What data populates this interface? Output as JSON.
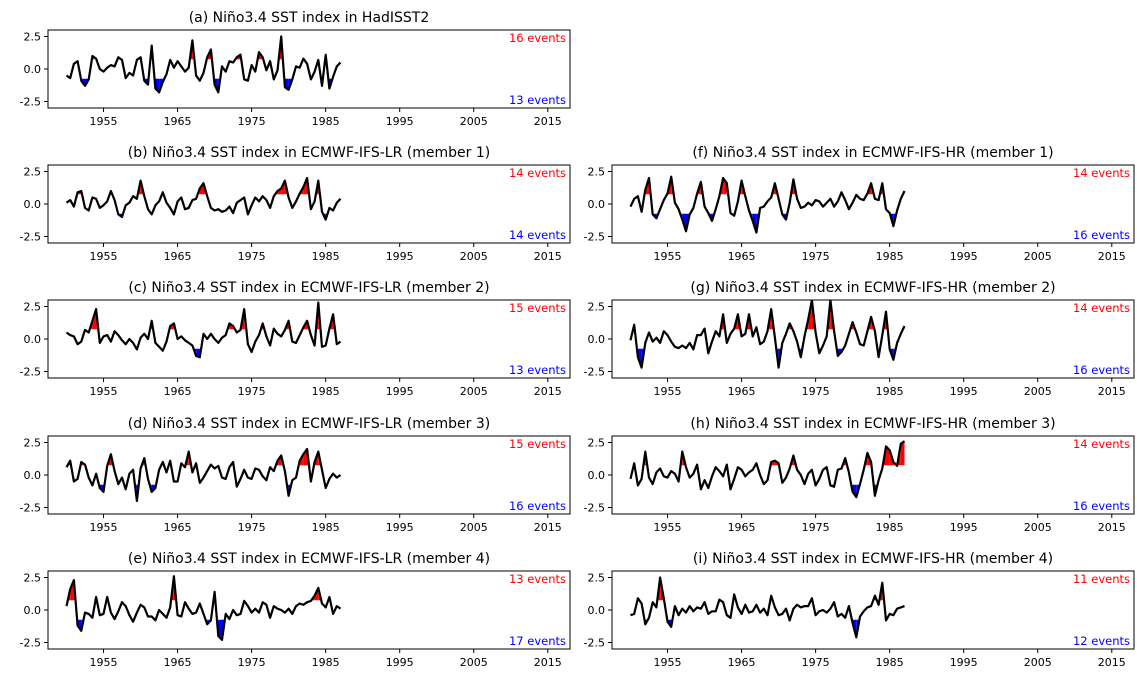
{
  "figure": {
    "colors": {
      "line": "#000000",
      "warm": "#ff0000",
      "cold": "#0000ff",
      "warm_text": "#ff0000",
      "cold_text": "#0000ff"
    }
  },
  "chart_data": [
    {
      "id": "a",
      "type": "line",
      "title": "(a) Niño3.4 SST index in HadISST2",
      "x_ticks": [
        1955,
        1965,
        1975,
        1985,
        1995,
        2005,
        2015
      ],
      "y_ticks": [
        2.5,
        0.0,
        -2.5
      ],
      "xlim": [
        1947.5,
        2018
      ],
      "ylim": [
        -3.0,
        3.0
      ],
      "threshold": 0.75,
      "warm_label": "16 events",
      "cold_label": "13 events",
      "series": {
        "x_start": 1950,
        "step": 0.5,
        "values": [
          -0.5,
          -0.7,
          0.4,
          0.6,
          -0.9,
          -1.3,
          -0.8,
          1.0,
          0.8,
          0.0,
          -0.2,
          0.1,
          0.3,
          0.2,
          0.9,
          0.7,
          -0.7,
          -0.3,
          -0.5,
          0.7,
          0.9,
          -0.9,
          -1.2,
          1.8,
          -1.5,
          -1.8,
          -1.0,
          -0.4,
          0.7,
          0.1,
          0.6,
          0.2,
          -0.2,
          0.1,
          2.2,
          -0.5,
          -0.9,
          -0.3,
          0.9,
          1.5,
          -1.2,
          -1.8,
          0.2,
          -0.2,
          0.6,
          0.5,
          0.9,
          1.1,
          -0.8,
          -0.9,
          0.3,
          -0.2,
          1.3,
          0.9,
          -0.1,
          0.6,
          -0.8,
          -0.1,
          2.5,
          -1.4,
          -1.6,
          -0.8,
          0.2,
          0.1,
          0.8,
          0.4,
          -0.8,
          -0.2,
          0.7,
          -1.3,
          1.1,
          -1.5,
          -0.6,
          0.2,
          0.5
        ]
      }
    },
    {
      "id": "b",
      "type": "line",
      "title": "(b) Niño3.4 SST index in ECMWF-IFS-LR (member 1)",
      "x_ticks": [
        1955,
        1965,
        1975,
        1985,
        1995,
        2005,
        2015
      ],
      "y_ticks": [
        2.5,
        0.0,
        -2.5
      ],
      "xlim": [
        1947.5,
        2018
      ],
      "ylim": [
        -3.0,
        3.0
      ],
      "threshold": 0.75,
      "warm_label": "14 events",
      "cold_label": "14 events",
      "series": {
        "x_start": 1950,
        "step": 0.5,
        "values": [
          0.1,
          0.3,
          -0.2,
          0.9,
          1.0,
          -0.3,
          -0.5,
          0.5,
          0.4,
          -0.3,
          -0.1,
          0.2,
          1.0,
          0.3,
          -0.8,
          -1.0,
          -0.1,
          0.1,
          0.6,
          0.4,
          1.8,
          0.6,
          -0.4,
          -0.8,
          -0.1,
          0.2,
          0.9,
          0.1,
          -0.3,
          -0.8,
          0.2,
          0.5,
          -0.4,
          -0.3,
          0.3,
          0.4,
          1.2,
          1.6,
          0.6,
          -0.3,
          -0.5,
          -0.4,
          -0.6,
          -0.5,
          -0.2,
          -0.7,
          0.1,
          0.3,
          0.5,
          -0.8,
          -0.1,
          0.5,
          0.2,
          0.6,
          0.3,
          -0.3,
          0.6,
          1.0,
          1.2,
          1.8,
          0.5,
          -0.3,
          0.2,
          0.8,
          1.3,
          2.0,
          -0.4,
          0.2,
          1.8,
          -0.6,
          -1.2,
          -0.3,
          -0.5,
          0.1,
          0.4
        ]
      }
    },
    {
      "id": "c",
      "type": "line",
      "title": "(c) Niño3.4 SST index in ECMWF-IFS-LR (member 2)",
      "x_ticks": [
        1955,
        1965,
        1975,
        1985,
        1995,
        2005,
        2015
      ],
      "y_ticks": [
        2.5,
        0.0,
        -2.5
      ],
      "xlim": [
        1947.5,
        2018
      ],
      "ylim": [
        -3.0,
        3.0
      ],
      "threshold": 0.75,
      "warm_label": "15 events",
      "cold_label": "13 events",
      "series": {
        "x_start": 1950,
        "step": 0.5,
        "values": [
          0.5,
          0.3,
          0.2,
          -0.4,
          -0.2,
          0.7,
          0.5,
          1.4,
          2.3,
          -0.3,
          0.2,
          0.3,
          -0.2,
          0.6,
          0.3,
          -0.1,
          -0.4,
          0.0,
          -0.3,
          -0.8,
          0.1,
          0.4,
          0.0,
          1.4,
          -0.3,
          -0.6,
          -0.9,
          -0.2,
          1.0,
          1.2,
          0.0,
          0.2,
          -0.1,
          -0.3,
          -0.5,
          -1.3,
          -1.4,
          0.4,
          0.0,
          0.4,
          0.0,
          -0.3,
          0.1,
          0.3,
          1.2,
          1.0,
          0.5,
          0.7,
          2.3,
          -0.4,
          -1.0,
          -0.2,
          0.3,
          1.2,
          0.2,
          -0.5,
          0.8,
          0.4,
          0.2,
          0.7,
          1.4,
          -0.2,
          -0.3,
          0.3,
          0.9,
          1.4,
          0.3,
          -0.5,
          2.8,
          -0.6,
          -0.5,
          0.8,
          1.9,
          -0.4,
          -0.2
        ]
      }
    },
    {
      "id": "d",
      "type": "line",
      "title": "(d) Niño3.4 SST index in ECMWF-IFS-LR (member 3)",
      "x_ticks": [
        1955,
        1965,
        1975,
        1985,
        1995,
        2005,
        2015
      ],
      "y_ticks": [
        2.5,
        0.0,
        -2.5
      ],
      "xlim": [
        1947.5,
        2018
      ],
      "ylim": [
        -3.0,
        3.0
      ],
      "threshold": 0.75,
      "warm_label": "15 events",
      "cold_label": "16 events",
      "series": {
        "x_start": 1950,
        "step": 0.5,
        "values": [
          0.6,
          1.1,
          -0.5,
          -0.3,
          1.0,
          0.8,
          -0.2,
          -0.8,
          0.1,
          -1.0,
          -1.3,
          0.7,
          1.6,
          0.3,
          -0.7,
          -0.2,
          -1.1,
          0.1,
          0.4,
          -2.0,
          0.5,
          1.3,
          -0.3,
          -1.3,
          -1.0,
          0.4,
          1.0,
          0.2,
          1.1,
          -0.5,
          -0.5,
          0.9,
          0.6,
          1.8,
          0.2,
          0.9,
          -0.6,
          -0.2,
          0.3,
          0.8,
          0.5,
          0.7,
          -0.2,
          -0.3,
          0.6,
          1.0,
          -0.9,
          -0.3,
          0.4,
          -0.2,
          -0.3,
          0.5,
          0.4,
          -0.1,
          -0.4,
          0.6,
          0.3,
          1.1,
          1.5,
          0.3,
          -1.6,
          -0.4,
          -0.2,
          1.1,
          1.6,
          2.0,
          -0.5,
          1.0,
          1.8,
          0.4,
          -1.0,
          -0.3,
          0.1,
          -0.2,
          0.0
        ]
      }
    },
    {
      "id": "e",
      "type": "line",
      "title": "(e) Niño3.4 SST index in ECMWF-IFS-LR (member 4)",
      "x_ticks": [
        1955,
        1965,
        1975,
        1985,
        1995,
        2005,
        2015
      ],
      "y_ticks": [
        2.5,
        0.0,
        -2.5
      ],
      "xlim": [
        1947.5,
        2018
      ],
      "ylim": [
        -3.0,
        3.0
      ],
      "threshold": 0.75,
      "warm_label": "13 events",
      "cold_label": "17 events",
      "series": {
        "x_start": 1950,
        "step": 0.5,
        "values": [
          0.3,
          1.6,
          2.3,
          -1.2,
          -1.6,
          -0.2,
          -0.3,
          -0.6,
          1.0,
          -0.4,
          -0.3,
          1.0,
          -0.2,
          -0.7,
          -0.1,
          0.6,
          0.3,
          -0.4,
          -0.9,
          -0.2,
          0.4,
          0.2,
          -0.5,
          -0.5,
          -0.8,
          0.0,
          -0.3,
          -0.6,
          0.2,
          2.6,
          -0.4,
          -0.5,
          0.6,
          0.1,
          -0.3,
          -0.2,
          0.5,
          -0.3,
          -1.1,
          -0.8,
          1.4,
          -2.0,
          -2.3,
          -0.3,
          -0.7,
          0.0,
          -0.4,
          -0.3,
          0.7,
          0.3,
          -0.2,
          0.1,
          -0.2,
          0.6,
          0.4,
          -0.6,
          0.3,
          0.1,
          0.0,
          -0.2,
          0.1,
          -0.3,
          0.3,
          0.5,
          0.4,
          0.6,
          0.7,
          1.1,
          1.7,
          0.5,
          0.2,
          1.0,
          -0.3,
          0.3,
          0.1
        ]
      }
    },
    {
      "id": "f",
      "type": "line",
      "title": "(f) Niño3.4 SST index in ECMWF-IFS-HR (member 1)",
      "x_ticks": [
        1955,
        1965,
        1975,
        1985,
        1995,
        2005,
        2015
      ],
      "y_ticks": [
        2.5,
        0.0,
        -2.5
      ],
      "xlim": [
        1947.5,
        2018
      ],
      "ylim": [
        -3.0,
        3.0
      ],
      "threshold": 0.75,
      "warm_label": "14 events",
      "cold_label": "16 events",
      "series": {
        "x_start": 1950,
        "step": 0.5,
        "values": [
          -0.2,
          0.4,
          0.6,
          -0.6,
          1.1,
          2.0,
          -0.8,
          -1.1,
          -0.4,
          0.3,
          0.8,
          2.1,
          0.1,
          -0.4,
          -1.2,
          -2.1,
          -0.8,
          -0.3,
          0.8,
          1.7,
          -0.2,
          -0.7,
          -1.3,
          -0.4,
          0.6,
          2.0,
          1.6,
          -0.7,
          -0.9,
          0.2,
          1.8,
          0.6,
          -0.5,
          -1.3,
          -2.2,
          -0.3,
          -0.2,
          0.2,
          0.5,
          1.6,
          0.4,
          -0.8,
          -1.2,
          0.1,
          1.9,
          0.4,
          -0.3,
          -0.2,
          0.1,
          -0.1,
          0.3,
          0.2,
          -0.2,
          0.1,
          0.4,
          -0.2,
          0.2,
          0.9,
          0.3,
          -0.4,
          0.1,
          0.7,
          0.4,
          0.3,
          0.8,
          1.6,
          0.4,
          0.3,
          1.6,
          -0.4,
          -0.7,
          -1.7,
          -0.5,
          0.4,
          1.0
        ]
      }
    },
    {
      "id": "g",
      "type": "line",
      "title": "(g) Niño3.4 SST index in ECMWF-IFS-HR (member 2)",
      "x_ticks": [
        1955,
        1965,
        1975,
        1985,
        1995,
        2005,
        2015
      ],
      "y_ticks": [
        2.5,
        0.0,
        -2.5
      ],
      "xlim": [
        1947.5,
        2018
      ],
      "ylim": [
        -3.0,
        3.0
      ],
      "threshold": 0.75,
      "warm_label": "14 events",
      "cold_label": "16 events",
      "series": {
        "x_start": 1950,
        "step": 0.5,
        "values": [
          -0.1,
          1.1,
          -1.4,
          -2.2,
          -0.3,
          0.5,
          -0.2,
          0.1,
          -0.3,
          0.6,
          0.3,
          -0.2,
          -0.6,
          -0.7,
          -0.5,
          -0.7,
          -0.3,
          -0.8,
          0.3,
          0.3,
          0.8,
          -1.1,
          -0.2,
          0.6,
          0.2,
          1.9,
          -0.3,
          0.4,
          0.8,
          1.9,
          0.2,
          0.4,
          1.9,
          0.2,
          0.9,
          -0.4,
          -0.2,
          0.6,
          2.3,
          0.1,
          -2.2,
          -0.3,
          0.4,
          1.2,
          0.6,
          -0.2,
          -1.4,
          0.2,
          1.5,
          3.0,
          0.5,
          -1.1,
          -0.5,
          0.2,
          3.0,
          0.6,
          -1.3,
          -1.0,
          -0.5,
          0.4,
          1.3,
          0.5,
          -0.4,
          -0.5,
          0.6,
          1.7,
          0.6,
          -1.4,
          0.3,
          2.1,
          -0.8,
          -1.6,
          -0.3,
          0.4,
          1.0
        ]
      }
    },
    {
      "id": "h",
      "type": "line",
      "title": "(h) Niño3.4 SST index in ECMWF-IFS-HR (member 3)",
      "x_ticks": [
        1955,
        1965,
        1975,
        1985,
        1995,
        2005,
        2015
      ],
      "y_ticks": [
        2.5,
        0.0,
        -2.5
      ],
      "xlim": [
        1947.5,
        2018
      ],
      "ylim": [
        -3.0,
        3.0
      ],
      "threshold": 0.75,
      "warm_label": "14 events",
      "cold_label": "16 events",
      "series": {
        "x_start": 1950,
        "step": 0.5,
        "values": [
          -0.3,
          0.9,
          -0.8,
          -0.3,
          1.8,
          -0.2,
          -0.7,
          0.2,
          0.5,
          -0.1,
          -0.2,
          0.3,
          0.1,
          -0.5,
          1.8,
          0.6,
          -0.2,
          0.1,
          0.8,
          -1.1,
          -0.4,
          -1.0,
          -0.1,
          0.6,
          0.3,
          -0.1,
          0.8,
          -1.1,
          -0.3,
          0.6,
          0.4,
          -0.1,
          0.2,
          0.4,
          0.9,
          0.0,
          -0.7,
          -0.4,
          1.0,
          1.1,
          0.9,
          -0.6,
          -0.2,
          0.5,
          1.5,
          0.4,
          0.0,
          -0.7,
          0.1,
          0.4,
          -0.8,
          -0.3,
          0.4,
          0.6,
          -0.8,
          -0.9,
          0.4,
          0.5,
          1.3,
          0.2,
          -1.3,
          -1.7,
          -0.7,
          0.4,
          1.7,
          1.0,
          -1.6,
          -0.4,
          0.5,
          2.2,
          1.9,
          1.0,
          0.7,
          2.4,
          2.6
        ]
      }
    },
    {
      "id": "i",
      "type": "line",
      "title": "(i) Niño3.4 SST index in ECMWF-IFS-HR (member 4)",
      "x_ticks": [
        1955,
        1965,
        1975,
        1985,
        1995,
        2005,
        2015
      ],
      "y_ticks": [
        2.5,
        0.0,
        -2.5
      ],
      "xlim": [
        1947.5,
        2018
      ],
      "ylim": [
        -3.0,
        3.0
      ],
      "threshold": 0.75,
      "warm_label": "11 events",
      "cold_label": "12 events",
      "series": {
        "x_start": 1950,
        "step": 0.5,
        "values": [
          -0.4,
          -0.3,
          0.9,
          0.5,
          -1.1,
          -0.6,
          0.6,
          0.2,
          2.5,
          0.9,
          -0.9,
          -1.3,
          0.3,
          -0.4,
          0.1,
          -0.2,
          0.3,
          -0.1,
          0.2,
          0.1,
          0.6,
          -0.3,
          -0.1,
          -0.1,
          0.8,
          0.6,
          -0.4,
          -0.6,
          1.2,
          0.2,
          -0.3,
          0.4,
          -0.2,
          -0.1,
          0.4,
          -0.2,
          0.1,
          -0.4,
          1.1,
          0.2,
          -0.4,
          -0.3,
          0.1,
          -0.8,
          0.1,
          0.4,
          0.2,
          0.3,
          0.3,
          0.9,
          -0.4,
          -0.1,
          0.0,
          -0.2,
          0.1,
          0.6,
          -0.5,
          -0.3,
          -0.6,
          0.3,
          -1.0,
          -2.1,
          -0.5,
          -0.1,
          0.2,
          0.3,
          1.1,
          0.4,
          2.1,
          -0.8,
          -0.3,
          -0.4,
          0.1,
          0.2,
          0.3
        ]
      }
    }
  ]
}
